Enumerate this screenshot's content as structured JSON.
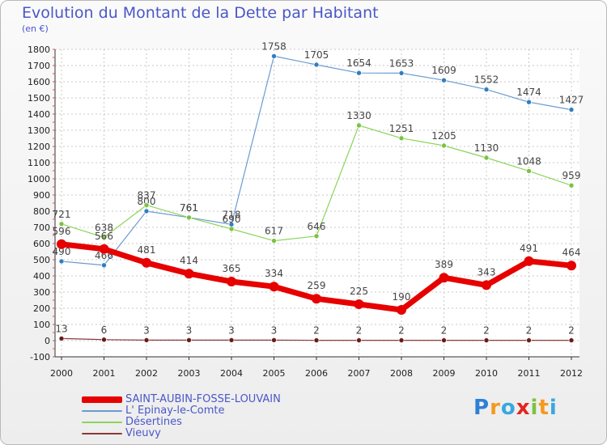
{
  "title": "Evolution du Montant de la Dette par Habitant",
  "subtitle": "(en €)",
  "logo": {
    "text": "Proxiti",
    "letters": [
      {
        "ch": "P",
        "color": "#2f7fd6"
      },
      {
        "ch": "r",
        "color": "#f39a1f"
      },
      {
        "ch": "o",
        "color": "#37a8e0"
      },
      {
        "ch": "x",
        "color": "#e2261d"
      },
      {
        "ch": "i",
        "color": "#7cc242"
      },
      {
        "ch": "t",
        "color": "#f39a1f"
      },
      {
        "ch": "i",
        "color": "#37a8e0"
      }
    ]
  },
  "chart_data": {
    "type": "line",
    "title": "Evolution du Montant de la Dette par Habitant",
    "subtitle": "(en €)",
    "x": [
      "2000",
      "2001",
      "2002",
      "2003",
      "2004",
      "2005",
      "2006",
      "2007",
      "2008",
      "2009",
      "2010",
      "2011",
      "2012"
    ],
    "ylim": [
      -100,
      1800
    ],
    "yticks": [
      -100,
      0,
      100,
      200,
      300,
      400,
      500,
      600,
      700,
      800,
      900,
      1000,
      1100,
      1200,
      1300,
      1400,
      1500,
      1600,
      1700,
      1800
    ],
    "grid": true,
    "legend_position": "bottom-left",
    "series": [
      {
        "name": "L' Epinay-le-Comte",
        "color": "#6b9bd2",
        "marker": "#2f7fc0",
        "width": 1.2,
        "radius": 3,
        "values": [
          490,
          466,
          800,
          761,
          718,
          1758,
          1705,
          1654,
          1653,
          1609,
          1552,
          1474,
          1427
        ],
        "labels": [
          "490",
          "466",
          "800",
          "761",
          "718",
          "1758",
          "1705",
          "1654",
          "1653",
          "1609",
          "1552",
          "1474",
          "1427"
        ]
      },
      {
        "name": "Désertines",
        "color": "#8cd45a",
        "marker": "#7cc242",
        "width": 1.2,
        "radius": 3,
        "values": [
          721,
          638,
          837,
          761,
          690,
          617,
          646,
          1330,
          1251,
          1205,
          1130,
          1048,
          959
        ],
        "labels": [
          "721",
          "638",
          "837",
          "761",
          "690",
          "617",
          "646",
          "1330",
          "1251",
          "1205",
          "1130",
          "1048",
          "959"
        ]
      },
      {
        "name": "Vieuvy",
        "color": "#8b3a3a",
        "marker": "#6b1a1a",
        "width": 1.2,
        "radius": 3,
        "values": [
          13,
          6,
          3,
          3,
          3,
          3,
          2,
          2,
          2,
          2,
          2,
          2,
          2
        ],
        "labels": [
          "13",
          "6",
          "3",
          "3",
          "3",
          "3",
          "2",
          "2",
          "2",
          "2",
          "2",
          "2",
          "2"
        ]
      },
      {
        "name": "SAINT-AUBIN-FOSSE-LOUVAIN",
        "color": "#e60000",
        "marker": "#e60000",
        "width": 7,
        "radius": 6,
        "values": [
          596,
          566,
          481,
          414,
          365,
          334,
          259,
          225,
          190,
          389,
          343,
          491,
          464
        ],
        "labels": [
          "596",
          "566",
          "481",
          "414",
          "365",
          "334",
          "259",
          "225",
          "190",
          "389",
          "343",
          "491",
          "464"
        ]
      }
    ]
  },
  "legend": [
    {
      "label": "SAINT-AUBIN-FOSSE-LOUVAIN",
      "color": "#e60000",
      "thickness": 8
    },
    {
      "label": "L' Epinay-le-Comte",
      "color": "#6b9bd2",
      "thickness": 2
    },
    {
      "label": "Désertines",
      "color": "#8cd45a",
      "thickness": 2
    },
    {
      "label": "Vieuvy",
      "color": "#8b3a3a",
      "thickness": 2
    }
  ]
}
